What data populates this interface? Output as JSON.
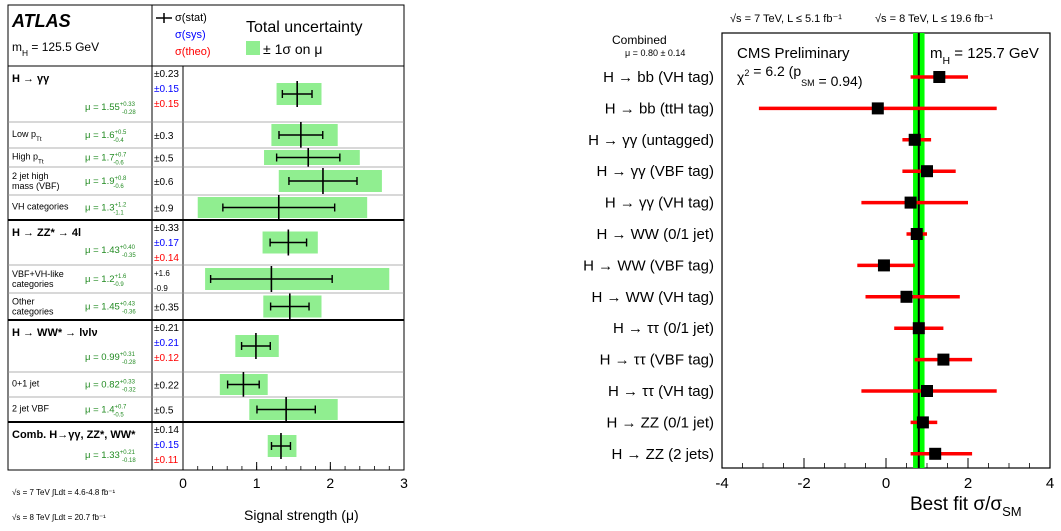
{
  "chart_data": [
    {
      "type": "forest",
      "experiment": "ATLAS",
      "mass_label": "m_H = 125.5 GeV",
      "legend": {
        "stat": "σ(stat)",
        "sys": "σ(sys)",
        "theo": "σ(theo)",
        "total_title": "Total uncertainty",
        "band": "± 1σ on μ"
      },
      "xlim": [
        0,
        3
      ],
      "xticks": [
        "0",
        "1",
        "2",
        "3"
      ],
      "xlabel": "Signal strength (μ)",
      "footnotes": [
        "√s = 7 TeV ∫Ldt = 4.6-4.8 fb⁻¹",
        "√s = 8 TeV ∫Ldt = 20.7 fb⁻¹"
      ],
      "colors": {
        "band": "#90ee90",
        "stat": "#000000",
        "sys": "#0000ff",
        "theo": "#ff0000",
        "mu": "#228b22"
      },
      "rows": [
        {
          "label": "H → γγ",
          "bold": true,
          "mu": 1.55,
          "mu_text": "μ = 1.55",
          "sup": "+0.33",
          "sub": "-0.28",
          "lo": 1.27,
          "hi": 1.88,
          "unc": [
            {
              "t": "±0.23",
              "c": "stat"
            },
            {
              "t": "±0.15",
              "c": "sys"
            },
            {
              "t": "±0.15",
              "c": "theo"
            }
          ]
        },
        {
          "label": "Low p_Tt",
          "bold": false,
          "mu": 1.6,
          "mu_text": "μ = 1.6",
          "sup": "+0.5",
          "sub": "-0.4",
          "lo": 1.2,
          "hi": 2.1,
          "unc": [
            {
              "t": "±0.3",
              "c": "stat"
            }
          ]
        },
        {
          "label": "High p_Tt",
          "bold": false,
          "mu": 1.7,
          "mu_text": "μ = 1.7",
          "sup": "+0.7",
          "sub": "-0.6",
          "lo": 1.1,
          "hi": 2.4,
          "unc": [
            {
              "t": "±0.5",
              "c": "stat"
            }
          ]
        },
        {
          "label": "2 jet high mass (VBF)",
          "bold": false,
          "mu": 1.9,
          "mu_text": "μ = 1.9",
          "sup": "+0.8",
          "sub": "-0.6",
          "lo": 1.3,
          "hi": 2.7,
          "unc": [
            {
              "t": "±0.6",
              "c": "stat"
            }
          ]
        },
        {
          "label": "VH categories",
          "bold": false,
          "mu": 1.3,
          "mu_text": "μ = 1.3",
          "sup": "+1.2",
          "sub": "-1.1",
          "lo": 0.2,
          "hi": 2.5,
          "unc": [
            {
              "t": "±0.9",
              "c": "stat"
            }
          ]
        },
        {
          "label": "H → ZZ* → 4l",
          "bold": true,
          "mu": 1.43,
          "mu_text": "μ = 1.43",
          "sup": "+0.40",
          "sub": "-0.35",
          "lo": 1.08,
          "hi": 1.83,
          "unc": [
            {
              "t": "±0.33",
              "c": "stat"
            },
            {
              "t": "±0.17",
              "c": "sys"
            },
            {
              "t": "±0.14",
              "c": "theo"
            }
          ]
        },
        {
          "label": "VBF+VH-like categories",
          "bold": false,
          "mu": 1.2,
          "mu_text": "μ = 1.2",
          "sup": "+1.6",
          "sub": "-0.9",
          "lo": 0.3,
          "hi": 2.8,
          "unc": [
            {
              "t": "+1.6",
              "c": "stat"
            },
            {
              "t": "-0.9",
              "c": "stat"
            }
          ]
        },
        {
          "label": "Other categories",
          "bold": false,
          "mu": 1.45,
          "mu_text": "μ = 1.45",
          "sup": "+0.43",
          "sub": "-0.36",
          "lo": 1.09,
          "hi": 1.88,
          "unc": [
            {
              "t": "±0.35",
              "c": "stat"
            }
          ]
        },
        {
          "label": "H → WW* → lνlν",
          "bold": true,
          "mu": 0.99,
          "mu_text": "μ = 0.99",
          "sup": "+0.31",
          "sub": "-0.28",
          "lo": 0.71,
          "hi": 1.3,
          "unc": [
            {
              "t": "±0.21",
              "c": "stat"
            },
            {
              "t": "±0.21",
              "c": "sys"
            },
            {
              "t": "±0.12",
              "c": "theo"
            }
          ]
        },
        {
          "label": "0+1 jet",
          "bold": false,
          "mu": 0.82,
          "mu_text": "μ = 0.82",
          "sup": "+0.33",
          "sub": "-0.32",
          "lo": 0.5,
          "hi": 1.15,
          "unc": [
            {
              "t": "±0.22",
              "c": "stat"
            }
          ]
        },
        {
          "label": "2 jet VBF",
          "bold": false,
          "mu": 1.4,
          "mu_text": "μ = 1.4",
          "sup": "+0.7",
          "sub": "-0.5",
          "lo": 0.9,
          "hi": 2.1,
          "unc": [
            {
              "t": "±0.5",
              "c": "stat"
            }
          ]
        },
        {
          "label": "Comb. H→γγ, ZZ*, WW*",
          "bold": true,
          "mu": 1.33,
          "mu_text": "μ = 1.33",
          "sup": "+0.21",
          "sub": "-0.18",
          "lo": 1.15,
          "hi": 1.54,
          "unc": [
            {
              "t": "±0.14",
              "c": "stat"
            },
            {
              "t": "±0.15",
              "c": "sys"
            },
            {
              "t": "±0.11",
              "c": "theo"
            }
          ]
        }
      ]
    },
    {
      "type": "forest",
      "header_left": "√s = 7 TeV, L ≤ 5.1 fb⁻¹",
      "header_right": "√s = 8 TeV, L ≤ 19.6 fb⁻¹",
      "combined_label": "Combined",
      "combined_value": "μ = 0.80 ± 0.14",
      "combined_mu": 0.8,
      "combined_lo": 0.66,
      "combined_hi": 0.94,
      "title": "CMS Preliminary",
      "mass_label": "m_H = 125.7 GeV",
      "chi2_label": "χ² = 6.2 (p_SM = 0.94)",
      "xlim": [
        -4,
        4
      ],
      "xticks": [
        "-4",
        "-2",
        "0",
        "2",
        "4"
      ],
      "xlabel": "Best fit σ/σ_SM",
      "colors": {
        "band": "#00ff00",
        "line": "#000000",
        "bar": "#ff0000",
        "marker": "#000000"
      },
      "rows": [
        {
          "label": "H → bb (VH tag)",
          "mu": 1.3,
          "lo": 0.6,
          "hi": 2.0
        },
        {
          "label": "H → bb (ttH tag)",
          "mu": -0.2,
          "lo": -3.1,
          "hi": 2.7
        },
        {
          "label": "H → γγ (untagged)",
          "mu": 0.7,
          "lo": 0.4,
          "hi": 1.1
        },
        {
          "label": "H → γγ (VBF tag)",
          "mu": 1.0,
          "lo": 0.4,
          "hi": 1.7
        },
        {
          "label": "H → γγ (VH tag)",
          "mu": 0.6,
          "lo": -0.6,
          "hi": 2.0
        },
        {
          "label": "H → WW (0/1 jet)",
          "mu": 0.75,
          "lo": 0.5,
          "hi": 1.0
        },
        {
          "label": "H → WW (VBF tag)",
          "mu": -0.05,
          "lo": -0.7,
          "hi": 0.7
        },
        {
          "label": "H → WW (VH tag)",
          "mu": 0.5,
          "lo": -0.5,
          "hi": 1.8
        },
        {
          "label": "H → ττ (0/1 jet)",
          "mu": 0.8,
          "lo": 0.2,
          "hi": 1.4
        },
        {
          "label": "H → ττ (VBF tag)",
          "mu": 1.4,
          "lo": 0.7,
          "hi": 2.1
        },
        {
          "label": "H → ττ (VH tag)",
          "mu": 1.0,
          "lo": -0.6,
          "hi": 2.7
        },
        {
          "label": "H → ZZ (0/1 jet)",
          "mu": 0.9,
          "lo": 0.6,
          "hi": 1.25
        },
        {
          "label": "H → ZZ (2 jets)",
          "mu": 1.2,
          "lo": 0.6,
          "hi": 2.1
        }
      ]
    }
  ]
}
